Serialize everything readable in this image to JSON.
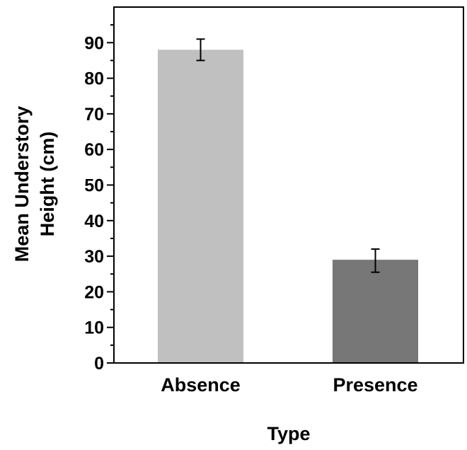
{
  "chart_data": {
    "type": "bar",
    "categories": [
      "Absence",
      "Presence"
    ],
    "values": [
      88,
      29
    ],
    "error_bars": [
      {
        "low": 85,
        "high": 91
      },
      {
        "low": 25.5,
        "high": 32
      }
    ],
    "colors": [
      "#c0c0c0",
      "#777777"
    ],
    "title": "",
    "xlabel": "Type",
    "ylabel_lines": [
      "Mean Understory",
      "Height (cm)"
    ],
    "ylim": [
      0,
      100
    ],
    "yticks": [
      0,
      10,
      20,
      30,
      40,
      50,
      60,
      70,
      80,
      90
    ],
    "minor_tick_step": 5,
    "grid": false,
    "legend": "none"
  }
}
